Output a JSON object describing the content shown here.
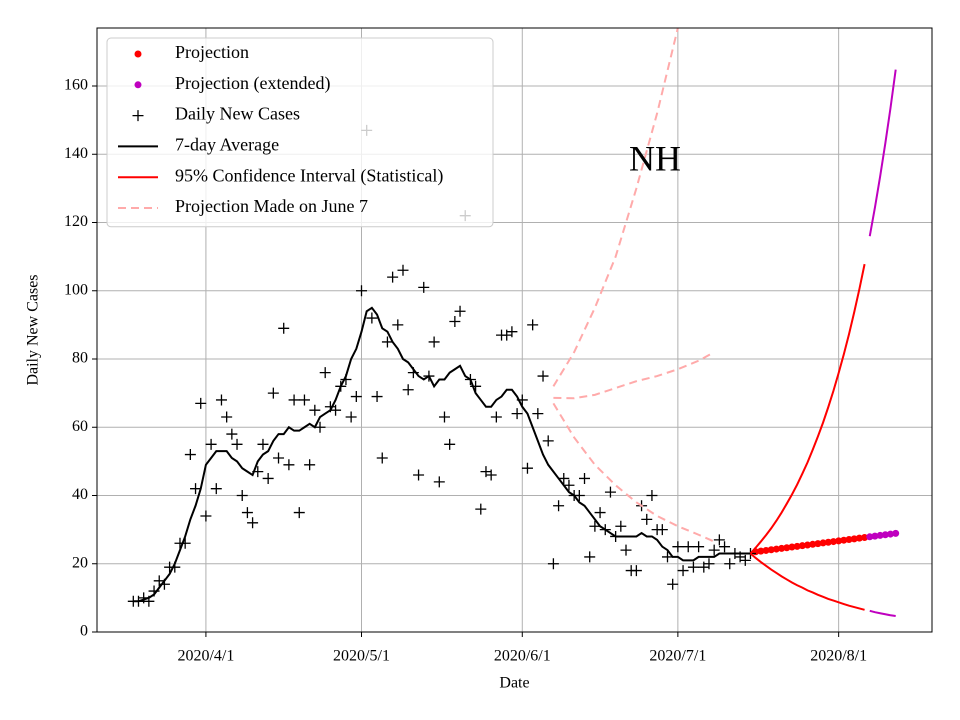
{
  "chart_data": {
    "type": "line",
    "xlabel": "Date",
    "ylabel": "Daily New Cases",
    "annotation": "NH",
    "xlim": [
      "2020-03-11",
      "2020-08-19"
    ],
    "ylim": [
      0,
      177
    ],
    "yticks": [
      0,
      20,
      40,
      60,
      80,
      100,
      120,
      140,
      160
    ],
    "xticks": [
      {
        "value": "2020-04-01",
        "label": "2020/4/1"
      },
      {
        "value": "2020-05-01",
        "label": "2020/5/1"
      },
      {
        "value": "2020-06-01",
        "label": "2020/6/1"
      },
      {
        "value": "2020-07-01",
        "label": "2020/7/1"
      },
      {
        "value": "2020-08-01",
        "label": "2020/8/1"
      }
    ],
    "grid": true,
    "legend": "upper left",
    "x": [
      "2020-03-18",
      "2020-03-19",
      "2020-03-20",
      "2020-03-21",
      "2020-03-22",
      "2020-03-23",
      "2020-03-24",
      "2020-03-25",
      "2020-03-26",
      "2020-03-27",
      "2020-03-28",
      "2020-03-29",
      "2020-03-30",
      "2020-03-31",
      "2020-04-01",
      "2020-04-02",
      "2020-04-03",
      "2020-04-04",
      "2020-04-05",
      "2020-04-06",
      "2020-04-07",
      "2020-04-08",
      "2020-04-09",
      "2020-04-10",
      "2020-04-11",
      "2020-04-12",
      "2020-04-13",
      "2020-04-14",
      "2020-04-15",
      "2020-04-16",
      "2020-04-17",
      "2020-04-18",
      "2020-04-19",
      "2020-04-20",
      "2020-04-21",
      "2020-04-22",
      "2020-04-23",
      "2020-04-24",
      "2020-04-25",
      "2020-04-26",
      "2020-04-27",
      "2020-04-28",
      "2020-04-29",
      "2020-04-30",
      "2020-05-01",
      "2020-05-02",
      "2020-05-03",
      "2020-05-04",
      "2020-05-05",
      "2020-05-06",
      "2020-05-07",
      "2020-05-08",
      "2020-05-09",
      "2020-05-10",
      "2020-05-11",
      "2020-05-12",
      "2020-05-13",
      "2020-05-14",
      "2020-05-15",
      "2020-05-16",
      "2020-05-17",
      "2020-05-18",
      "2020-05-19",
      "2020-05-20",
      "2020-05-21",
      "2020-05-22",
      "2020-05-23",
      "2020-05-24",
      "2020-05-25",
      "2020-05-26",
      "2020-05-27",
      "2020-05-28",
      "2020-05-29",
      "2020-05-30",
      "2020-05-31",
      "2020-06-01",
      "2020-06-02",
      "2020-06-03",
      "2020-06-04",
      "2020-06-05",
      "2020-06-06",
      "2020-06-07",
      "2020-06-08",
      "2020-06-09",
      "2020-06-10",
      "2020-06-11",
      "2020-06-12",
      "2020-06-13",
      "2020-06-14",
      "2020-06-15",
      "2020-06-16",
      "2020-06-17",
      "2020-06-18",
      "2020-06-19",
      "2020-06-20",
      "2020-06-21",
      "2020-06-22",
      "2020-06-23",
      "2020-06-24",
      "2020-06-25",
      "2020-06-26",
      "2020-06-27",
      "2020-06-28",
      "2020-06-29",
      "2020-06-30",
      "2020-07-01",
      "2020-07-02",
      "2020-07-03",
      "2020-07-04",
      "2020-07-05",
      "2020-07-06",
      "2020-07-07",
      "2020-07-08",
      "2020-07-09",
      "2020-07-10",
      "2020-07-11",
      "2020-07-12",
      "2020-07-13",
      "2020-07-14",
      "2020-07-15"
    ],
    "series": [
      {
        "name": "Projection",
        "color": "#ff0000",
        "marker": "dot",
        "x": [
          "2020-07-16",
          "2020-07-17",
          "2020-07-18",
          "2020-07-19",
          "2020-07-20",
          "2020-07-21",
          "2020-07-22",
          "2020-07-23",
          "2020-07-24",
          "2020-07-25",
          "2020-07-26",
          "2020-07-27",
          "2020-07-28",
          "2020-07-29",
          "2020-07-30",
          "2020-07-31",
          "2020-08-01",
          "2020-08-02",
          "2020-08-03",
          "2020-08-04",
          "2020-08-05",
          "2020-08-06"
        ],
        "values": [
          23.5,
          23.7,
          23.9,
          24.1,
          24.3,
          24.5,
          24.7,
          24.9,
          25.1,
          25.3,
          25.5,
          25.7,
          25.9,
          26.1,
          26.3,
          26.5,
          26.7,
          26.9,
          27.1,
          27.3,
          27.5,
          27.7
        ]
      },
      {
        "name": "Projection (extended)",
        "color": "#bf00bf",
        "marker": "dot",
        "x": [
          "2020-08-07",
          "2020-08-08",
          "2020-08-09",
          "2020-08-10",
          "2020-08-11",
          "2020-08-12"
        ],
        "values": [
          27.9,
          28.1,
          28.3,
          28.5,
          28.7,
          28.9
        ]
      },
      {
        "name": "Daily New Cases",
        "color": "#000000",
        "marker": "plus",
        "values": [
          9,
          9,
          10,
          9,
          12,
          15,
          14,
          19,
          19,
          26,
          26,
          52,
          42,
          67,
          34,
          55,
          42,
          68,
          63,
          58,
          55,
          40,
          35,
          32,
          47,
          55,
          45,
          70,
          51,
          89,
          49,
          68,
          35,
          68,
          49,
          65,
          60,
          76,
          66,
          65,
          72,
          74,
          63,
          69,
          100,
          147,
          92,
          69,
          51,
          85,
          104,
          90,
          106,
          71,
          76,
          46,
          101,
          75,
          85,
          44,
          63,
          55,
          91,
          94,
          122,
          74,
          72,
          36,
          47,
          46,
          63,
          87,
          87,
          88,
          64,
          68,
          48,
          90,
          64,
          75,
          56,
          20,
          37,
          45,
          43,
          40,
          40,
          45,
          22,
          31,
          35,
          30,
          41,
          28,
          31,
          24,
          18,
          18,
          37,
          33,
          40,
          30,
          30,
          22,
          14,
          25,
          18,
          25,
          19,
          25,
          19,
          20,
          24,
          27,
          25,
          20,
          23,
          22,
          21,
          23
        ]
      },
      {
        "name": "7-day Average",
        "color": "#000000",
        "style": "solid",
        "values": [
          9,
          9,
          9.5,
          10,
          11,
          13,
          15,
          17,
          20,
          24,
          28,
          33,
          37,
          42,
          49,
          51,
          53,
          53,
          53,
          51,
          50,
          48,
          47,
          46,
          50,
          52,
          53,
          56,
          58,
          58,
          60,
          59,
          59,
          60,
          61,
          60,
          63,
          64,
          65,
          68,
          72,
          75,
          80,
          83,
          88,
          94,
          95,
          93,
          89,
          88,
          85,
          83,
          80,
          79,
          77,
          75,
          74,
          75,
          72,
          74,
          74,
          76,
          77,
          78,
          75,
          74,
          70,
          68,
          66,
          66,
          68,
          69,
          71,
          71,
          69,
          66,
          64,
          60,
          56,
          52,
          49,
          47,
          45,
          43,
          41,
          40,
          38,
          37,
          35,
          33,
          31,
          30,
          29,
          28,
          28,
          28,
          28,
          28,
          29,
          28,
          28,
          27,
          25,
          24,
          22,
          22,
          21,
          21,
          21,
          22,
          22,
          22,
          22,
          23,
          23,
          23,
          23,
          23,
          23,
          23
        ]
      },
      {
        "name": "95% Confidence Interval (Statistical)",
        "color": "#ff0000",
        "style": "solid",
        "x": [
          "2020-07-15",
          "2020-07-16",
          "2020-07-17",
          "2020-07-18",
          "2020-07-19",
          "2020-07-20",
          "2020-07-21",
          "2020-07-22",
          "2020-07-23",
          "2020-07-24",
          "2020-07-25",
          "2020-07-26",
          "2020-07-27",
          "2020-07-28",
          "2020-07-29",
          "2020-07-30",
          "2020-07-31",
          "2020-08-01",
          "2020-08-02",
          "2020-08-03",
          "2020-08-04",
          "2020-08-05",
          "2020-08-06"
        ],
        "lower": [
          23,
          21.7,
          20.5,
          19.4,
          18.3,
          17.3,
          16.3,
          15.4,
          14.5,
          13.7,
          13,
          12.2,
          11.6,
          10.9,
          10.3,
          9.7,
          9.2,
          8.7,
          8.2,
          7.7,
          7.3,
          6.9,
          6.5
        ],
        "upper": [
          23,
          24.7,
          26.5,
          28.4,
          30.4,
          32.6,
          35,
          37.6,
          40.3,
          43.2,
          46.4,
          49.7,
          53.4,
          57.3,
          61.4,
          65.9,
          70.7,
          75.9,
          81.4,
          87.3,
          93.7,
          100.5,
          107.8
        ]
      },
      {
        "name": "Projection Made on June 7",
        "color": "#ffaaaa",
        "style": "dashed",
        "x": [
          "2020-06-07",
          "2020-06-11",
          "2020-06-15",
          "2020-06-19",
          "2020-06-23",
          "2020-06-27",
          "2020-07-01",
          "2020-07-05",
          "2020-07-08"
        ],
        "lower": [
          67,
          57,
          49,
          43,
          38,
          34,
          31,
          28.5,
          26.5
        ],
        "middle": [
          68.6,
          68.5,
          69.5,
          71.5,
          73.5,
          75,
          77,
          79.5,
          82
        ],
        "upper": [
          72,
          82,
          95,
          110,
          130,
          152,
          177,
          null,
          null
        ]
      },
      {
        "color": "#bf00bf",
        "style": "solid",
        "x": [
          "2020-08-07",
          "2020-08-08",
          "2020-08-09",
          "2020-08-10",
          "2020-08-11",
          "2020-08-12"
        ],
        "lower": [
          6.2,
          5.8,
          5.5,
          5.2,
          4.9,
          4.7
        ],
        "upper": [
          116,
          124.4,
          133.5,
          143.2,
          153.6,
          164.8
        ]
      }
    ]
  }
}
